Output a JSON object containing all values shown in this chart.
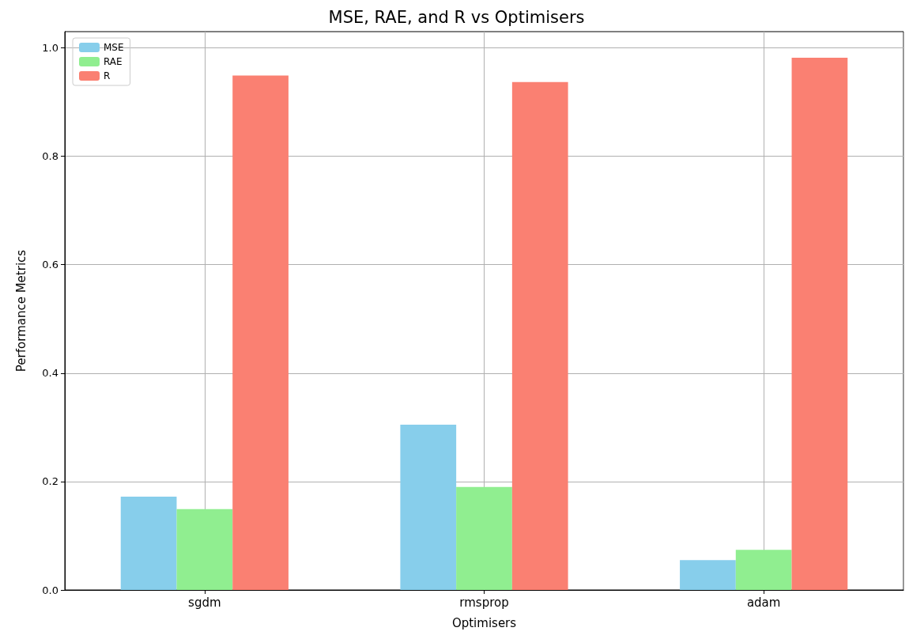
{
  "chart_data": {
    "type": "bar",
    "title": "MSE, RAE, and R vs Optimisers",
    "xlabel": "Optimisers",
    "ylabel": "Performance Metrics",
    "categories": [
      "sgdm",
      "rmsprop",
      "adam"
    ],
    "series": [
      {
        "name": "MSE",
        "color": "#87ceeb",
        "values": [
          0.172,
          0.305,
          0.055
        ]
      },
      {
        "name": "RAE",
        "color": "#90ee90",
        "values": [
          0.149,
          0.19,
          0.074
        ]
      },
      {
        "name": "R",
        "color": "#fa8072",
        "values": [
          0.949,
          0.937,
          0.982
        ]
      }
    ],
    "ylim": [
      0,
      1.03
    ],
    "yticks": [
      {
        "value": 0,
        "label": "0.0"
      },
      0.2,
      0.4,
      0.6,
      0.8,
      {
        "value": 1,
        "label": "1.0"
      }
    ],
    "grid": true,
    "legend": "top left"
  }
}
